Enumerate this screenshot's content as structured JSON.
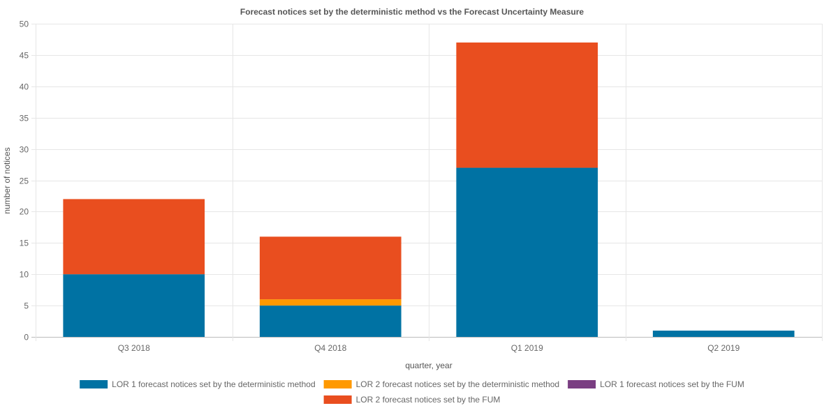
{
  "chart_data": {
    "type": "bar",
    "stacked": true,
    "title": "Forecast notices set by the deterministic method vs the Forecast Uncertainty Measure",
    "xlabel": "quarter, year",
    "ylabel": "number of notices",
    "ylim": [
      0,
      50
    ],
    "yticks": [
      0,
      5,
      10,
      15,
      20,
      25,
      30,
      35,
      40,
      45,
      50
    ],
    "grid": true,
    "legend_position": "bottom",
    "categories": [
      "Q3 2018",
      "Q4 2018",
      "Q1 2019",
      "Q2 2019"
    ],
    "series": [
      {
        "name": "LOR 1 forecast notices set by the deterministic method",
        "color": "#0072a3",
        "values": [
          10,
          5,
          27,
          1
        ]
      },
      {
        "name": "LOR 2 forecast notices set by the deterministic method",
        "color": "#ff9900",
        "values": [
          0,
          1,
          0,
          0
        ]
      },
      {
        "name": "LOR 1 forecast notices set by the FUM",
        "color": "#7a3e82",
        "values": [
          0,
          0,
          0,
          0
        ]
      },
      {
        "name": "LOR 2 forecast notices set by the FUM",
        "color": "#e94e1f",
        "values": [
          12,
          10,
          20,
          0
        ]
      }
    ]
  }
}
